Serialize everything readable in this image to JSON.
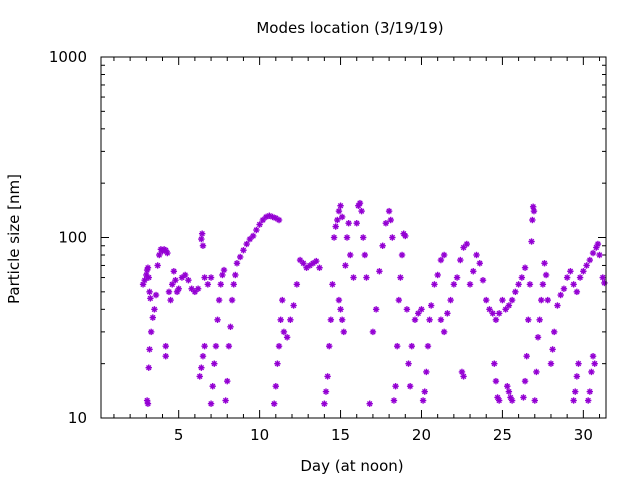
{
  "chart_data": {
    "type": "scatter",
    "title": "Modes location (3/19/19)",
    "xlabel": "Day (at noon)",
    "ylabel": "Particle size [nm]",
    "xlim": [
      0.2,
      31.4
    ],
    "ylim": [
      10,
      1000
    ],
    "yscale": "log",
    "xticks": [
      5,
      10,
      15,
      20,
      25,
      30
    ],
    "yticks": [
      10,
      100,
      1000
    ],
    "ytick_labels": [
      "10",
      "100",
      "1000"
    ],
    "grid": false,
    "legend": "none",
    "marker_color": "#9400d3",
    "marker": "asterisk",
    "series": [
      {
        "values": [
          [
            2.8,
            55
          ],
          [
            2.9,
            58
          ],
          [
            3.0,
            62
          ],
          [
            3.05,
            66
          ],
          [
            3.1,
            68
          ],
          [
            3.15,
            60
          ],
          [
            3.2,
            50
          ],
          [
            3.25,
            46
          ],
          [
            3.05,
            12.5
          ],
          [
            3.1,
            12
          ],
          [
            3.15,
            19
          ],
          [
            3.2,
            24
          ],
          [
            3.3,
            30
          ],
          [
            3.4,
            36
          ],
          [
            3.5,
            40
          ],
          [
            3.6,
            48
          ],
          [
            3.7,
            70
          ],
          [
            3.8,
            80
          ],
          [
            3.9,
            86
          ],
          [
            4.0,
            84
          ],
          [
            4.1,
            86
          ],
          [
            4.2,
            85
          ],
          [
            4.3,
            82
          ],
          [
            4.2,
            25
          ],
          [
            4.2,
            22
          ],
          [
            4.4,
            50
          ],
          [
            4.5,
            45
          ],
          [
            4.6,
            55
          ],
          [
            4.7,
            65
          ],
          [
            4.8,
            58
          ],
          [
            4.9,
            50
          ],
          [
            5.0,
            52
          ],
          [
            5.2,
            60
          ],
          [
            5.4,
            62
          ],
          [
            5.6,
            58
          ],
          [
            5.8,
            52
          ],
          [
            6.0,
            50
          ],
          [
            6.2,
            52
          ],
          [
            6.4,
            98
          ],
          [
            6.45,
            105
          ],
          [
            6.5,
            90
          ],
          [
            6.6,
            60
          ],
          [
            6.3,
            17
          ],
          [
            6.4,
            19
          ],
          [
            6.5,
            22
          ],
          [
            6.6,
            25
          ],
          [
            6.8,
            55
          ],
          [
            7.0,
            60
          ],
          [
            7.0,
            12
          ],
          [
            7.1,
            15
          ],
          [
            7.2,
            20
          ],
          [
            7.3,
            25
          ],
          [
            7.4,
            35
          ],
          [
            7.5,
            45
          ],
          [
            7.6,
            55
          ],
          [
            7.7,
            62
          ],
          [
            7.8,
            66
          ],
          [
            7.9,
            12.5
          ],
          [
            8.0,
            16
          ],
          [
            8.1,
            25
          ],
          [
            8.2,
            32
          ],
          [
            8.3,
            45
          ],
          [
            8.4,
            55
          ],
          [
            8.5,
            62
          ],
          [
            8.6,
            72
          ],
          [
            8.8,
            78
          ],
          [
            9.0,
            85
          ],
          [
            9.2,
            92
          ],
          [
            9.4,
            98
          ],
          [
            9.6,
            102
          ],
          [
            9.8,
            110
          ],
          [
            10.0,
            118
          ],
          [
            10.2,
            125
          ],
          [
            10.4,
            130
          ],
          [
            10.6,
            132
          ],
          [
            10.8,
            130
          ],
          [
            11.0,
            128
          ],
          [
            11.2,
            125
          ],
          [
            10.9,
            12
          ],
          [
            11.0,
            15
          ],
          [
            11.1,
            20
          ],
          [
            11.2,
            25
          ],
          [
            11.3,
            35
          ],
          [
            11.4,
            45
          ],
          [
            11.5,
            30
          ],
          [
            11.7,
            28
          ],
          [
            11.9,
            35
          ],
          [
            12.1,
            42
          ],
          [
            12.3,
            55
          ],
          [
            12.5,
            75
          ],
          [
            12.7,
            72
          ],
          [
            12.9,
            68
          ],
          [
            13.1,
            70
          ],
          [
            13.3,
            72
          ],
          [
            13.5,
            74
          ],
          [
            13.7,
            68
          ],
          [
            14.0,
            12
          ],
          [
            14.1,
            14
          ],
          [
            14.2,
            17
          ],
          [
            14.3,
            25
          ],
          [
            14.4,
            35
          ],
          [
            14.5,
            55
          ],
          [
            14.6,
            100
          ],
          [
            14.7,
            115
          ],
          [
            14.8,
            125
          ],
          [
            14.9,
            140
          ],
          [
            15.0,
            150
          ],
          [
            15.1,
            130
          ],
          [
            14.9,
            45
          ],
          [
            15.0,
            40
          ],
          [
            15.1,
            35
          ],
          [
            15.2,
            30
          ],
          [
            15.3,
            70
          ],
          [
            15.4,
            100
          ],
          [
            15.5,
            120
          ],
          [
            15.6,
            80
          ],
          [
            15.8,
            60
          ],
          [
            16.0,
            120
          ],
          [
            16.1,
            150
          ],
          [
            16.2,
            155
          ],
          [
            16.3,
            140
          ],
          [
            16.4,
            100
          ],
          [
            16.5,
            80
          ],
          [
            16.6,
            60
          ],
          [
            16.8,
            12
          ],
          [
            17.0,
            30
          ],
          [
            17.2,
            40
          ],
          [
            17.4,
            65
          ],
          [
            17.6,
            90
          ],
          [
            17.8,
            120
          ],
          [
            18.0,
            140
          ],
          [
            18.1,
            125
          ],
          [
            18.2,
            100
          ],
          [
            18.3,
            12.5
          ],
          [
            18.4,
            15
          ],
          [
            18.5,
            25
          ],
          [
            18.6,
            45
          ],
          [
            18.7,
            60
          ],
          [
            18.8,
            80
          ],
          [
            18.9,
            105
          ],
          [
            19.0,
            102
          ],
          [
            19.1,
            40
          ],
          [
            19.2,
            20
          ],
          [
            19.3,
            15
          ],
          [
            19.4,
            25
          ],
          [
            19.6,
            35
          ],
          [
            19.8,
            38
          ],
          [
            20.0,
            40
          ],
          [
            20.1,
            12.5
          ],
          [
            20.2,
            14
          ],
          [
            20.3,
            18
          ],
          [
            20.4,
            25
          ],
          [
            20.5,
            35
          ],
          [
            20.6,
            42
          ],
          [
            20.8,
            55
          ],
          [
            21.0,
            62
          ],
          [
            21.2,
            75
          ],
          [
            21.4,
            80
          ],
          [
            21.2,
            35
          ],
          [
            21.4,
            30
          ],
          [
            21.6,
            38
          ],
          [
            21.8,
            45
          ],
          [
            22.0,
            55
          ],
          [
            22.2,
            60
          ],
          [
            22.4,
            75
          ],
          [
            22.6,
            88
          ],
          [
            22.8,
            92
          ],
          [
            22.5,
            18
          ],
          [
            22.6,
            17
          ],
          [
            23.0,
            55
          ],
          [
            23.2,
            65
          ],
          [
            23.4,
            80
          ],
          [
            23.6,
            72
          ],
          [
            23.8,
            58
          ],
          [
            24.0,
            45
          ],
          [
            24.2,
            40
          ],
          [
            24.4,
            38
          ],
          [
            24.6,
            35
          ],
          [
            24.8,
            38
          ],
          [
            24.5,
            20
          ],
          [
            24.6,
            16
          ],
          [
            24.7,
            13
          ],
          [
            24.8,
            12.5
          ],
          [
            25.0,
            45
          ],
          [
            25.2,
            40
          ],
          [
            25.4,
            42
          ],
          [
            25.6,
            45
          ],
          [
            25.3,
            15
          ],
          [
            25.4,
            14
          ],
          [
            25.5,
            13
          ],
          [
            25.6,
            12.5
          ],
          [
            25.8,
            50
          ],
          [
            26.0,
            55
          ],
          [
            26.2,
            60
          ],
          [
            26.4,
            68
          ],
          [
            26.3,
            13
          ],
          [
            26.4,
            16
          ],
          [
            26.5,
            22
          ],
          [
            26.6,
            35
          ],
          [
            26.7,
            55
          ],
          [
            26.8,
            95
          ],
          [
            26.85,
            125
          ],
          [
            26.9,
            148
          ],
          [
            26.95,
            140
          ],
          [
            27.0,
            12.5
          ],
          [
            27.1,
            18
          ],
          [
            27.2,
            28
          ],
          [
            27.3,
            35
          ],
          [
            27.4,
            45
          ],
          [
            27.5,
            55
          ],
          [
            27.6,
            72
          ],
          [
            27.7,
            62
          ],
          [
            27.8,
            45
          ],
          [
            28.0,
            20
          ],
          [
            28.1,
            24
          ],
          [
            28.2,
            30
          ],
          [
            28.4,
            42
          ],
          [
            28.6,
            48
          ],
          [
            28.8,
            52
          ],
          [
            29.0,
            60
          ],
          [
            29.2,
            65
          ],
          [
            29.4,
            55
          ],
          [
            29.6,
            50
          ],
          [
            29.8,
            60
          ],
          [
            30.0,
            65
          ],
          [
            29.4,
            12.5
          ],
          [
            29.5,
            14
          ],
          [
            29.6,
            17
          ],
          [
            29.7,
            20
          ],
          [
            30.2,
            70
          ],
          [
            30.4,
            75
          ],
          [
            30.6,
            82
          ],
          [
            30.8,
            88
          ],
          [
            30.9,
            92
          ],
          [
            31.0,
            80
          ],
          [
            31.2,
            60
          ],
          [
            31.3,
            56
          ],
          [
            30.3,
            12.5
          ],
          [
            30.4,
            14
          ],
          [
            30.5,
            18
          ],
          [
            30.6,
            22
          ],
          [
            30.7,
            20
          ]
        ]
      }
    ]
  }
}
